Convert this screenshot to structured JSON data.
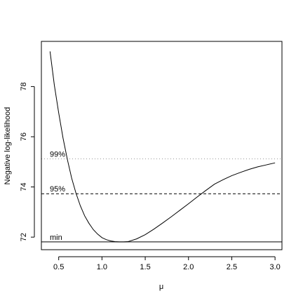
{
  "chart_data": {
    "type": "line",
    "title": "",
    "xlabel": "μ",
    "ylabel": "Negative log-likelihood",
    "xlim": [
      0.3,
      3.08
    ],
    "ylim": [
      71.5,
      79.8
    ],
    "grid": false,
    "x_ticks": [
      0.5,
      1.0,
      1.5,
      2.0,
      2.5,
      3.0
    ],
    "x_tick_labels": [
      "0.5",
      "1.0",
      "1.5",
      "2.0",
      "2.5",
      "3.0"
    ],
    "y_ticks": [
      72,
      74,
      76,
      78
    ],
    "y_tick_labels": [
      "72",
      "74",
      "76",
      "78"
    ],
    "series": [
      {
        "style": "solid",
        "color": "#000000",
        "x": [
          0.4,
          0.45,
          0.5,
          0.55,
          0.6,
          0.65,
          0.7,
          0.75,
          0.8,
          0.85,
          0.9,
          0.95,
          1.0,
          1.05,
          1.1,
          1.15,
          1.2,
          1.25,
          1.3,
          1.4,
          1.5,
          1.6,
          1.7,
          1.8,
          1.9,
          2.0,
          2.1,
          2.2,
          2.3,
          2.4,
          2.5,
          2.6,
          2.7,
          2.8,
          2.9,
          3.0
        ],
        "y": [
          79.4,
          78.05,
          76.95,
          75.95,
          75.1,
          74.35,
          73.75,
          73.25,
          72.85,
          72.55,
          72.3,
          72.12,
          71.98,
          71.9,
          71.85,
          71.82,
          71.81,
          71.81,
          71.82,
          71.93,
          72.1,
          72.32,
          72.56,
          72.81,
          73.07,
          73.33,
          73.6,
          73.86,
          74.11,
          74.29,
          74.45,
          74.58,
          74.7,
          74.8,
          74.88,
          74.96
        ]
      }
    ],
    "reference_lines": [
      {
        "label": "min",
        "y": 71.81,
        "style": "solid",
        "color": "#000000"
      },
      {
        "label": "95%",
        "y": 73.73,
        "style": "dashed",
        "color": "#000000"
      },
      {
        "label": "99%",
        "y": 75.12,
        "style": "dotted",
        "color": "#999999"
      }
    ]
  }
}
